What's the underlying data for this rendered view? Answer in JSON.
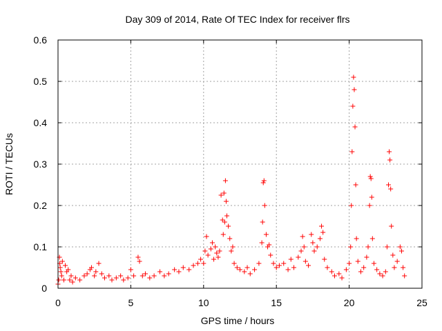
{
  "chart_data": {
    "type": "scatter",
    "title": "Day 309 of 2014, Rate Of TEC Index for receiver flrs",
    "xlabel": "GPS time / hours",
    "ylabel": "ROTI / TECUs",
    "xlim": [
      0,
      25
    ],
    "ylim": [
      0,
      0.6
    ],
    "xticks": [
      0,
      5,
      10,
      15,
      20,
      25
    ],
    "yticks": [
      0,
      0.1,
      0.2,
      0.3,
      0.4,
      0.5,
      0.6
    ],
    "xtick_labels": [
      "0",
      "5",
      "10",
      "15",
      "20",
      "25"
    ],
    "ytick_labels": [
      "0",
      "0.1",
      "0.2",
      "0.3",
      "0.4",
      "0.5",
      "0.6"
    ],
    "grid": true,
    "marker": "+",
    "color": "#ff0000",
    "series": [
      {
        "name": "ROTI",
        "points": [
          [
            0.0,
            0.01
          ],
          [
            0.05,
            0.02
          ],
          [
            0.1,
            0.075
          ],
          [
            0.12,
            0.06
          ],
          [
            0.15,
            0.05
          ],
          [
            0.2,
            0.04
          ],
          [
            0.25,
            0.03
          ],
          [
            0.3,
            0.065
          ],
          [
            0.4,
            0.02
          ],
          [
            0.5,
            0.055
          ],
          [
            0.6,
            0.04
          ],
          [
            0.7,
            0.045
          ],
          [
            0.8,
            0.02
          ],
          [
            0.9,
            0.03
          ],
          [
            1.0,
            0.015
          ],
          [
            1.2,
            0.025
          ],
          [
            1.5,
            0.02
          ],
          [
            1.8,
            0.03
          ],
          [
            2.0,
            0.035
          ],
          [
            2.2,
            0.045
          ],
          [
            2.3,
            0.05
          ],
          [
            2.5,
            0.03
          ],
          [
            2.6,
            0.04
          ],
          [
            2.8,
            0.06
          ],
          [
            3.0,
            0.035
          ],
          [
            3.2,
            0.025
          ],
          [
            3.5,
            0.03
          ],
          [
            3.7,
            0.02
          ],
          [
            4.0,
            0.025
          ],
          [
            4.3,
            0.03
          ],
          [
            4.5,
            0.02
          ],
          [
            4.8,
            0.025
          ],
          [
            5.0,
            0.045
          ],
          [
            5.2,
            0.03
          ],
          [
            5.5,
            0.075
          ],
          [
            5.6,
            0.065
          ],
          [
            5.8,
            0.03
          ],
          [
            6.0,
            0.035
          ],
          [
            6.3,
            0.025
          ],
          [
            6.6,
            0.03
          ],
          [
            7.0,
            0.04
          ],
          [
            7.3,
            0.03
          ],
          [
            7.6,
            0.035
          ],
          [
            8.0,
            0.045
          ],
          [
            8.3,
            0.04
          ],
          [
            8.6,
            0.05
          ],
          [
            9.0,
            0.045
          ],
          [
            9.3,
            0.055
          ],
          [
            9.6,
            0.06
          ],
          [
            9.8,
            0.07
          ],
          [
            10.0,
            0.06
          ],
          [
            10.1,
            0.09
          ],
          [
            10.2,
            0.125
          ],
          [
            10.3,
            0.08
          ],
          [
            10.5,
            0.095
          ],
          [
            10.6,
            0.11
          ],
          [
            10.7,
            0.07
          ],
          [
            10.8,
            0.1
          ],
          [
            10.9,
            0.085
          ],
          [
            11.0,
            0.075
          ],
          [
            11.1,
            0.09
          ],
          [
            11.2,
            0.225
          ],
          [
            11.3,
            0.165
          ],
          [
            11.35,
            0.13
          ],
          [
            11.4,
            0.23
          ],
          [
            11.45,
            0.16
          ],
          [
            11.5,
            0.26
          ],
          [
            11.55,
            0.21
          ],
          [
            11.6,
            0.175
          ],
          [
            11.7,
            0.15
          ],
          [
            11.8,
            0.12
          ],
          [
            11.9,
            0.09
          ],
          [
            12.0,
            0.1
          ],
          [
            12.1,
            0.06
          ],
          [
            12.3,
            0.05
          ],
          [
            12.5,
            0.045
          ],
          [
            12.8,
            0.04
          ],
          [
            13.0,
            0.05
          ],
          [
            13.2,
            0.035
          ],
          [
            13.5,
            0.045
          ],
          [
            13.8,
            0.06
          ],
          [
            14.0,
            0.11
          ],
          [
            14.05,
            0.16
          ],
          [
            14.1,
            0.255
          ],
          [
            14.15,
            0.26
          ],
          [
            14.2,
            0.2
          ],
          [
            14.3,
            0.13
          ],
          [
            14.4,
            0.1
          ],
          [
            14.5,
            0.105
          ],
          [
            14.6,
            0.08
          ],
          [
            14.8,
            0.06
          ],
          [
            15.0,
            0.05
          ],
          [
            15.2,
            0.055
          ],
          [
            15.5,
            0.06
          ],
          [
            15.8,
            0.045
          ],
          [
            16.0,
            0.07
          ],
          [
            16.2,
            0.05
          ],
          [
            16.5,
            0.075
          ],
          [
            16.7,
            0.09
          ],
          [
            16.8,
            0.125
          ],
          [
            16.9,
            0.1
          ],
          [
            17.0,
            0.065
          ],
          [
            17.2,
            0.055
          ],
          [
            17.4,
            0.13
          ],
          [
            17.5,
            0.11
          ],
          [
            17.6,
            0.09
          ],
          [
            17.8,
            0.1
          ],
          [
            18.0,
            0.12
          ],
          [
            18.1,
            0.15
          ],
          [
            18.2,
            0.135
          ],
          [
            18.3,
            0.07
          ],
          [
            18.5,
            0.05
          ],
          [
            18.8,
            0.04
          ],
          [
            19.0,
            0.03
          ],
          [
            19.3,
            0.035
          ],
          [
            19.5,
            0.025
          ],
          [
            19.8,
            0.045
          ],
          [
            20.0,
            0.06
          ],
          [
            20.1,
            0.1
          ],
          [
            20.15,
            0.2
          ],
          [
            20.2,
            0.33
          ],
          [
            20.25,
            0.44
          ],
          [
            20.3,
            0.51
          ],
          [
            20.35,
            0.48
          ],
          [
            20.4,
            0.39
          ],
          [
            20.45,
            0.25
          ],
          [
            20.5,
            0.12
          ],
          [
            20.6,
            0.065
          ],
          [
            20.8,
            0.04
          ],
          [
            21.0,
            0.05
          ],
          [
            21.2,
            0.075
          ],
          [
            21.3,
            0.1
          ],
          [
            21.4,
            0.2
          ],
          [
            21.45,
            0.27
          ],
          [
            21.5,
            0.265
          ],
          [
            21.55,
            0.22
          ],
          [
            21.6,
            0.12
          ],
          [
            21.7,
            0.06
          ],
          [
            21.9,
            0.045
          ],
          [
            22.1,
            0.035
          ],
          [
            22.3,
            0.03
          ],
          [
            22.5,
            0.04
          ],
          [
            22.6,
            0.1
          ],
          [
            22.7,
            0.25
          ],
          [
            22.75,
            0.33
          ],
          [
            22.8,
            0.31
          ],
          [
            22.85,
            0.24
          ],
          [
            22.9,
            0.15
          ],
          [
            23.0,
            0.08
          ],
          [
            23.1,
            0.05
          ],
          [
            23.3,
            0.065
          ],
          [
            23.5,
            0.1
          ],
          [
            23.6,
            0.09
          ],
          [
            23.7,
            0.05
          ],
          [
            23.8,
            0.03
          ]
        ]
      }
    ]
  }
}
